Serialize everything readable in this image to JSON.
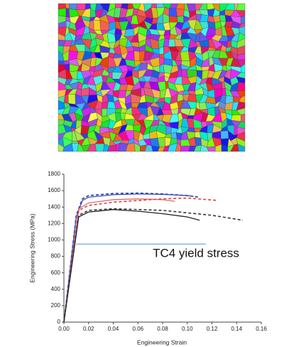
{
  "chart_data": {
    "type": "line",
    "x_label": "Engineering Strain",
    "y_label": "Engineering Stress (MPa)",
    "annotation": "TC4 yield stress",
    "xlim": [
      0,
      0.16
    ],
    "xticks": [
      {
        "value": 0,
        "label": "0.00"
      },
      {
        "value": 0.02,
        "label": "0.02"
      },
      {
        "value": 0.04,
        "label": "0.04"
      },
      {
        "value": 0.06,
        "label": "0.06"
      },
      {
        "value": 0.08,
        "label": "0.08"
      },
      {
        "value": 0.1,
        "label": "0.10"
      },
      {
        "value": 0.12,
        "label": "0.12"
      },
      {
        "value": 0.14,
        "label": "0.14"
      },
      {
        "value": 0.16,
        "label": "0.16"
      }
    ],
    "ylim": [
      0,
      1800
    ],
    "yticks": [
      0,
      200,
      400,
      600,
      800,
      1000,
      1200,
      1400,
      1600,
      1800
    ],
    "series": [
      {
        "color": "#1f2fa0",
        "dashed": true,
        "x": [
          0,
          0.01,
          0.015,
          0.02,
          0.04,
          0.06,
          0.08,
          0.1,
          0.11
        ],
        "values": [
          0,
          1300,
          1500,
          1540,
          1565,
          1570,
          1560,
          1540,
          1520
        ]
      },
      {
        "color": "#3a4bc0",
        "dashed": false,
        "x": [
          0,
          0.01,
          0.015,
          0.02,
          0.04,
          0.06,
          0.08,
          0.1,
          0.105
        ],
        "values": [
          0,
          1280,
          1480,
          1520,
          1550,
          1560,
          1555,
          1540,
          1530
        ]
      },
      {
        "color": "#e06a6a",
        "dashed": false,
        "x": [
          0,
          0.012,
          0.02,
          0.04,
          0.06,
          0.08,
          0.09
        ],
        "values": [
          0,
          1380,
          1450,
          1490,
          1500,
          1490,
          1470
        ]
      },
      {
        "color": "#d94040",
        "dashed": true,
        "x": [
          0,
          0.012,
          0.02,
          0.04,
          0.06,
          0.08,
          0.1,
          0.125
        ],
        "values": [
          0,
          1360,
          1420,
          1460,
          1480,
          1500,
          1510,
          1480
        ]
      },
      {
        "color": "#222222",
        "dashed": false,
        "x": [
          0,
          0.012,
          0.02,
          0.04,
          0.06,
          0.08,
          0.1,
          0.11
        ],
        "values": [
          0,
          1280,
          1340,
          1370,
          1350,
          1320,
          1280,
          1240
        ]
      },
      {
        "color": "#333333",
        "dashed": true,
        "x": [
          0,
          0.012,
          0.02,
          0.04,
          0.08,
          0.12,
          0.145
        ],
        "values": [
          0,
          1300,
          1360,
          1380,
          1360,
          1300,
          1240
        ]
      },
      {
        "color": "#6fa8dc",
        "dashed": false,
        "x": [
          0.01,
          0.115
        ],
        "values": [
          950,
          950
        ]
      }
    ]
  }
}
